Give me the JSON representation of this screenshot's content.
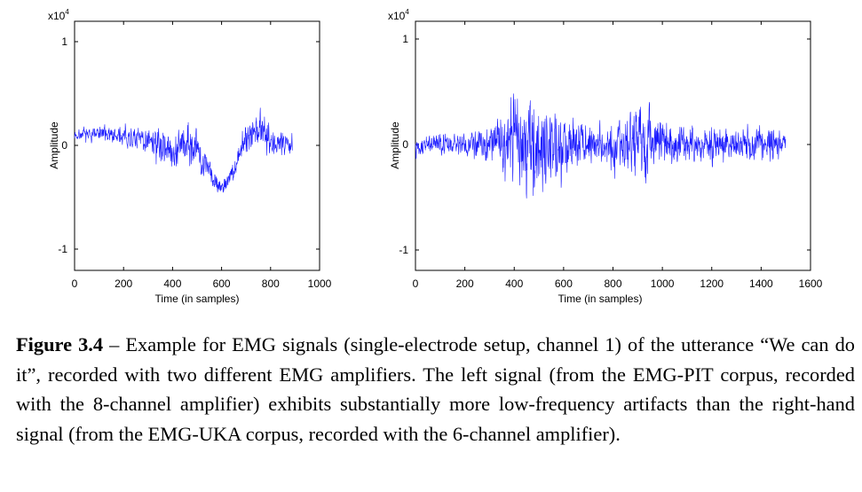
{
  "colors": {
    "signal": "#1a1aff",
    "axis": "#000000"
  },
  "chart_data": [
    {
      "type": "line",
      "title": "",
      "xlabel": "Time (in samples)",
      "ylabel": "Amplitude",
      "y_scale_label": "x10",
      "y_scale_exponent": "4",
      "xlim": [
        0,
        1000
      ],
      "ylim": [
        -1.0,
        1.0
      ],
      "xticks": [
        "0",
        "200",
        "400",
        "600",
        "800",
        "1000"
      ],
      "yticks": [
        "1",
        "0",
        "-1"
      ],
      "xtick_values": [
        0,
        200,
        400,
        600,
        800,
        1000
      ],
      "ytick_values": [
        1,
        0,
        -1
      ],
      "grid": false,
      "n_samples": 890,
      "signal_envelope": [
        {
          "x": 0,
          "baseline": 0.1,
          "amplitude": 0.06
        },
        {
          "x": 100,
          "baseline": 0.12,
          "amplitude": 0.08
        },
        {
          "x": 200,
          "baseline": 0.08,
          "amplitude": 0.1
        },
        {
          "x": 300,
          "baseline": 0.05,
          "amplitude": 0.14
        },
        {
          "x": 400,
          "baseline": -0.05,
          "amplitude": 0.2
        },
        {
          "x": 450,
          "baseline": 0.0,
          "amplitude": 0.28
        },
        {
          "x": 500,
          "baseline": -0.05,
          "amplitude": 0.22
        },
        {
          "x": 550,
          "baseline": -0.25,
          "amplitude": 0.14
        },
        {
          "x": 600,
          "baseline": -0.42,
          "amplitude": 0.1
        },
        {
          "x": 650,
          "baseline": -0.25,
          "amplitude": 0.1
        },
        {
          "x": 700,
          "baseline": 0.1,
          "amplitude": 0.18
        },
        {
          "x": 750,
          "baseline": 0.15,
          "amplitude": 0.2
        },
        {
          "x": 800,
          "baseline": 0.05,
          "amplitude": 0.16
        },
        {
          "x": 890,
          "baseline": 0.0,
          "amplitude": 0.1
        }
      ]
    },
    {
      "type": "line",
      "title": "",
      "xlabel": "Time (in samples)",
      "ylabel": "Amplitude",
      "y_scale_label": "x10",
      "y_scale_exponent": "4",
      "xlim": [
        0,
        1600
      ],
      "ylim": [
        -1.0,
        1.0
      ],
      "xticks": [
        "0",
        "200",
        "400",
        "600",
        "800",
        "1000",
        "1200",
        "1400",
        "1600"
      ],
      "yticks": [
        "1",
        "0",
        "-1"
      ],
      "xtick_values": [
        0,
        200,
        400,
        600,
        800,
        1000,
        1200,
        1400,
        1600
      ],
      "ytick_values": [
        1,
        0,
        -1
      ],
      "grid": false,
      "n_samples": 1500,
      "signal_envelope": [
        {
          "x": 0,
          "baseline": 0.0,
          "amplitude": 0.1
        },
        {
          "x": 200,
          "baseline": 0.0,
          "amplitude": 0.12
        },
        {
          "x": 300,
          "baseline": 0.0,
          "amplitude": 0.2
        },
        {
          "x": 400,
          "baseline": 0.0,
          "amplitude": 0.55
        },
        {
          "x": 500,
          "baseline": 0.0,
          "amplitude": 0.5
        },
        {
          "x": 600,
          "baseline": 0.0,
          "amplitude": 0.3
        },
        {
          "x": 700,
          "baseline": 0.0,
          "amplitude": 0.2
        },
        {
          "x": 800,
          "baseline": 0.0,
          "amplitude": 0.22
        },
        {
          "x": 900,
          "baseline": 0.0,
          "amplitude": 0.45
        },
        {
          "x": 1000,
          "baseline": 0.0,
          "amplitude": 0.25
        },
        {
          "x": 1200,
          "baseline": 0.0,
          "amplitude": 0.18
        },
        {
          "x": 1300,
          "baseline": 0.0,
          "amplitude": 0.15
        },
        {
          "x": 1400,
          "baseline": 0.0,
          "amplitude": 0.2
        },
        {
          "x": 1500,
          "baseline": 0.0,
          "amplitude": 0.15
        }
      ]
    }
  ],
  "caption": {
    "label": "Figure 3.4",
    "text": " – Example for EMG signals (single-electrode setup, channel 1) of the utterance “We can do it”, recorded with two different EMG amplifiers. The left signal (from the EMG-PIT corpus, recorded with the 8-channel amplifier) exhibits substantially more low-frequency artifacts than the right-hand signal (from the EMG-UKA corpus, recorded with the 6-channel amplifier)."
  }
}
